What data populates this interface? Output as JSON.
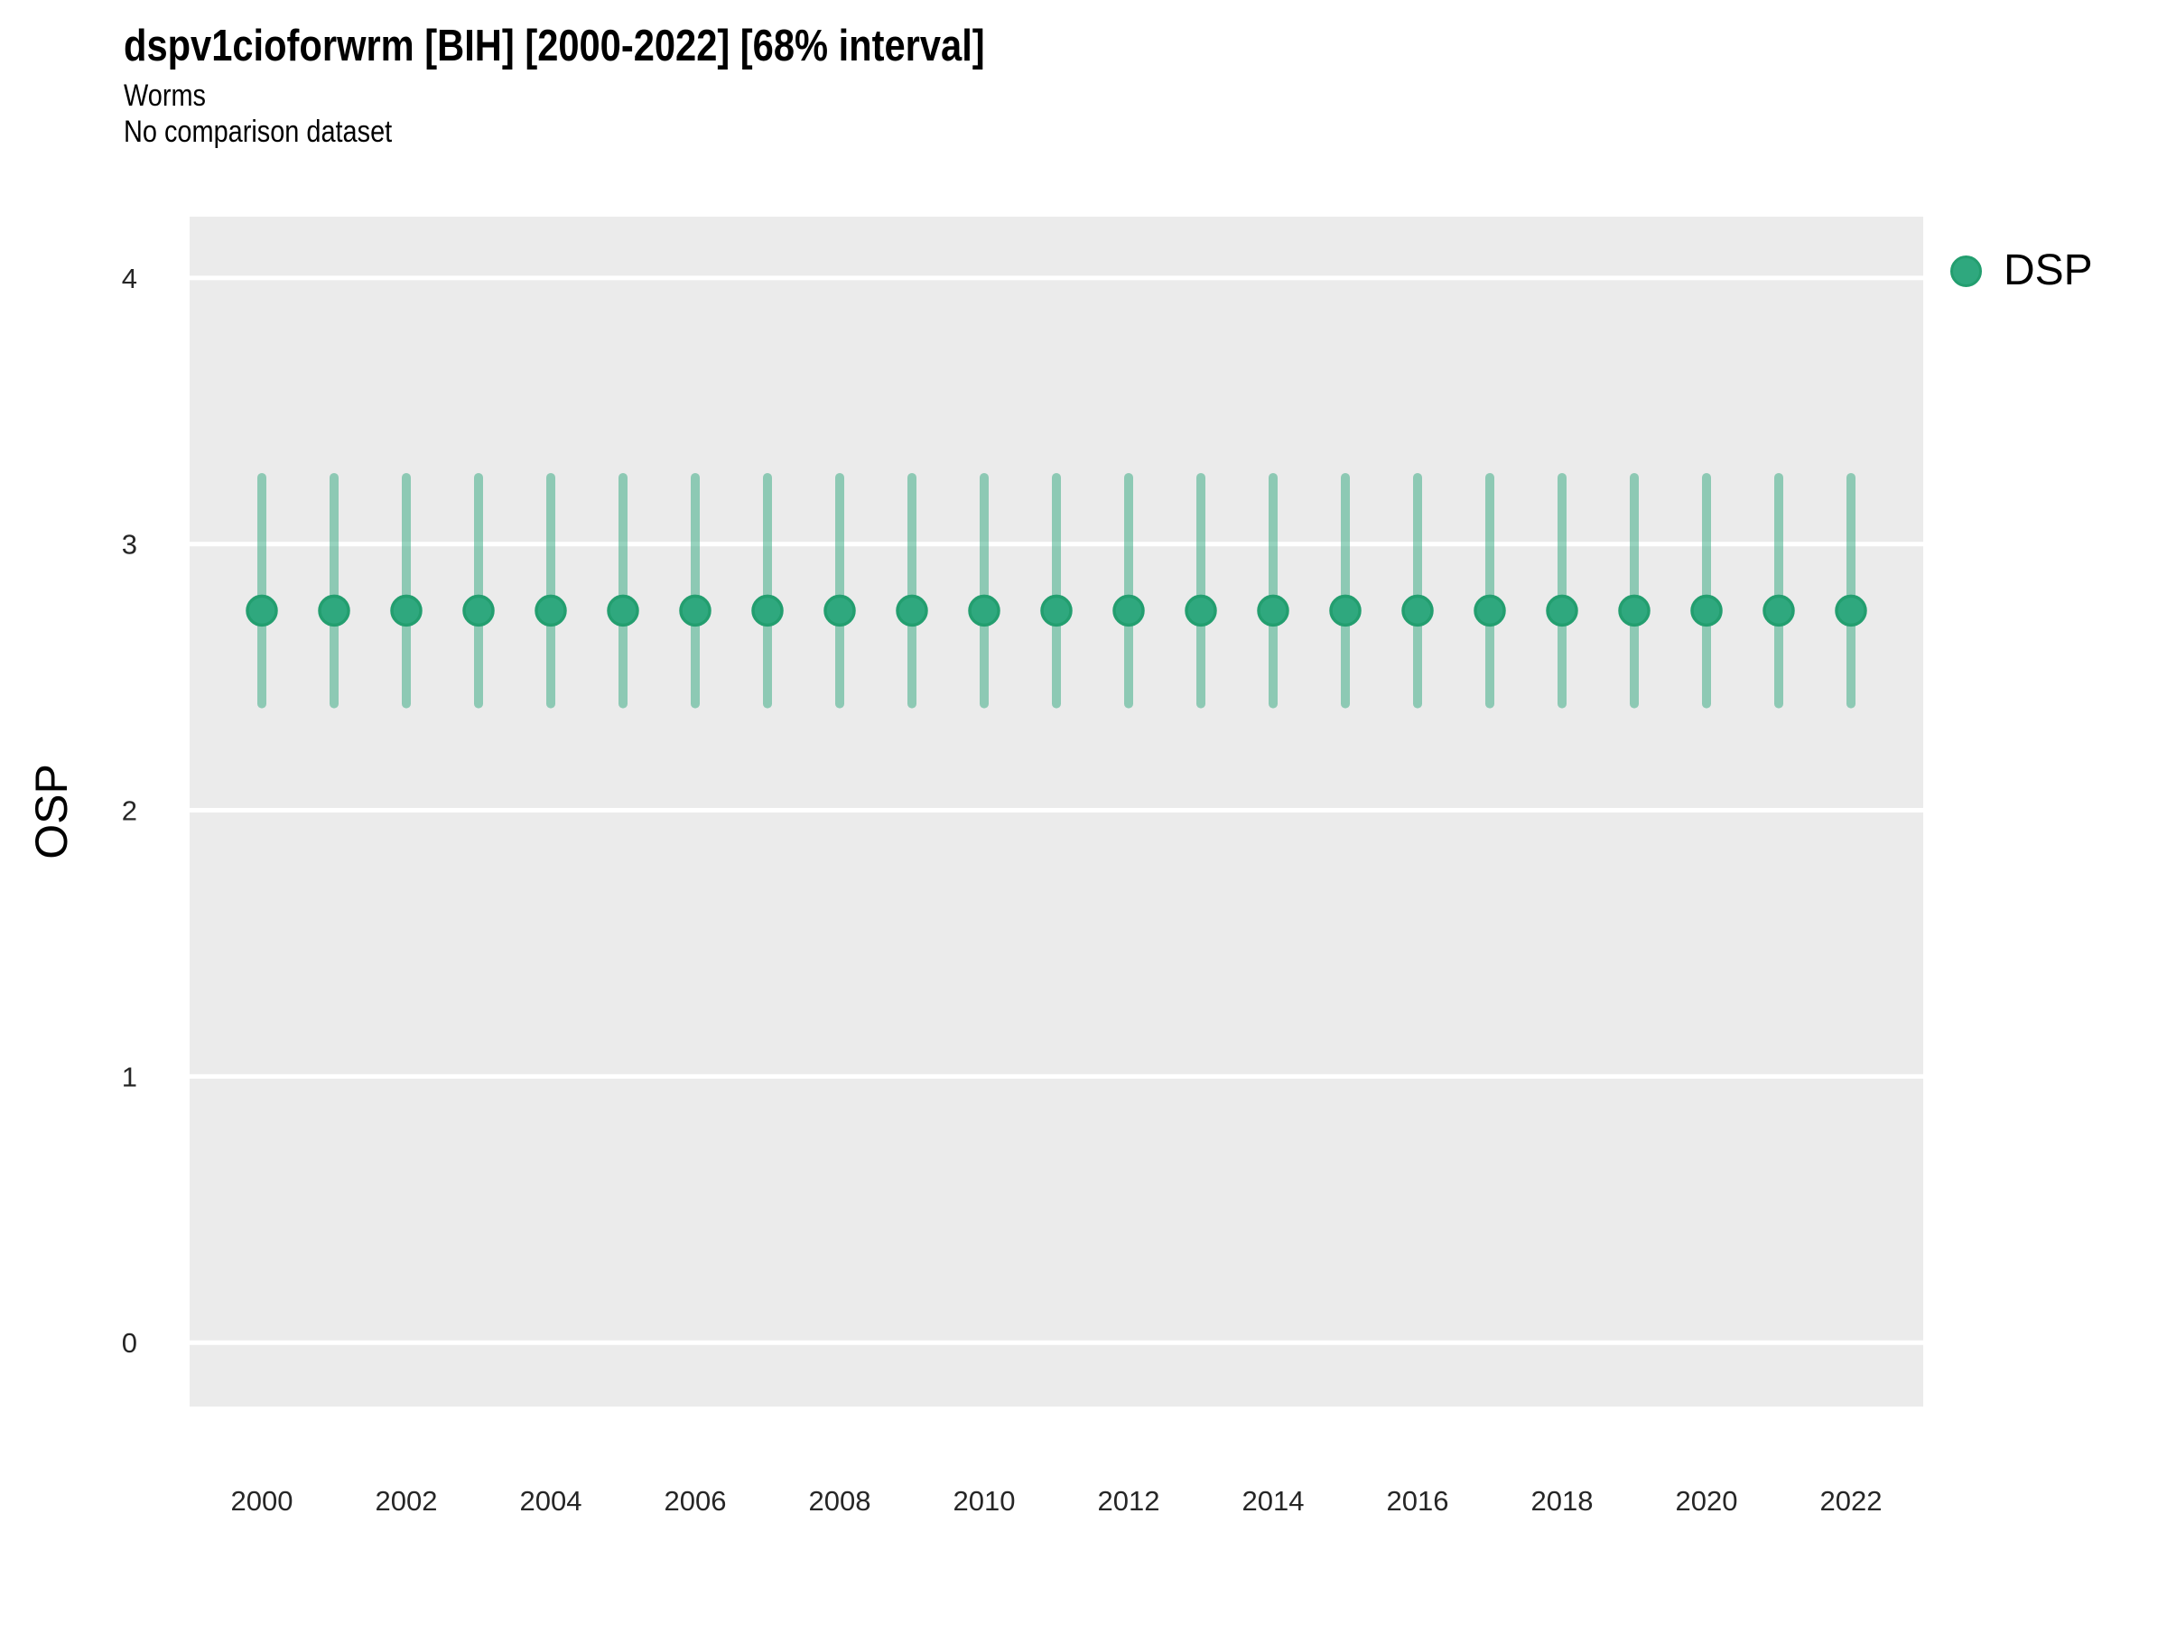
{
  "header": {
    "title": "dspv1cioforwrm [BIH] [2000-2022] [68% interval]",
    "subtitle": "Worms",
    "note": "No comparison dataset"
  },
  "y_axis": {
    "title": "OSP",
    "tick_labels": [
      "0",
      "1",
      "2",
      "3",
      "4"
    ]
  },
  "x_axis": {
    "tick_labels": [
      "2000",
      "2002",
      "2004",
      "2006",
      "2008",
      "2010",
      "2012",
      "2014",
      "2016",
      "2018",
      "2020",
      "2022"
    ]
  },
  "legend": {
    "position": "right",
    "items": [
      {
        "label": "DSP",
        "marker": "circle-icon",
        "color": "#2FA87E"
      }
    ]
  },
  "colors": {
    "point_fill": "#2FA87E",
    "point_stroke": "#239E6F",
    "error_bar": "rgba(47,168,126,0.5)",
    "panel_background": "#EBEBEB",
    "gridline": "#FFFFFF",
    "title_text": "#000000",
    "tick_text": "#262626"
  },
  "chart_data": {
    "type": "scatter",
    "title": "dspv1cioforwrm [BIH] [2000-2022] [68% interval]",
    "subtitle": "Worms",
    "note": "No comparison dataset",
    "xlabel": "",
    "ylabel": "OSP",
    "interval": "68%",
    "xlim": [
      1999,
      2023
    ],
    "ylim": [
      -0.24,
      4.23
    ],
    "x_ticks": [
      2000,
      2002,
      2004,
      2006,
      2008,
      2010,
      2012,
      2014,
      2016,
      2018,
      2020,
      2022
    ],
    "y_ticks": [
      0,
      1,
      2,
      3,
      4
    ],
    "grid": "major-horizontal-only",
    "legend_position": "right",
    "series": [
      {
        "name": "DSP",
        "x": [
          2000,
          2001,
          2002,
          2003,
          2004,
          2005,
          2006,
          2007,
          2008,
          2009,
          2010,
          2011,
          2012,
          2013,
          2014,
          2015,
          2016,
          2017,
          2018,
          2019,
          2020,
          2021,
          2022
        ],
        "y": [
          2.75,
          2.75,
          2.75,
          2.75,
          2.75,
          2.75,
          2.75,
          2.75,
          2.75,
          2.75,
          2.75,
          2.75,
          2.75,
          2.75,
          2.75,
          2.75,
          2.75,
          2.75,
          2.75,
          2.75,
          2.75,
          2.75,
          2.75
        ],
        "y_low": [
          2.4,
          2.4,
          2.4,
          2.4,
          2.4,
          2.4,
          2.4,
          2.4,
          2.4,
          2.4,
          2.4,
          2.4,
          2.4,
          2.4,
          2.4,
          2.4,
          2.4,
          2.4,
          2.4,
          2.4,
          2.4,
          2.4,
          2.4
        ],
        "y_high": [
          3.25,
          3.25,
          3.25,
          3.25,
          3.25,
          3.25,
          3.25,
          3.25,
          3.25,
          3.25,
          3.25,
          3.25,
          3.25,
          3.25,
          3.25,
          3.25,
          3.25,
          3.25,
          3.25,
          3.25,
          3.25,
          3.25,
          3.25
        ]
      }
    ]
  }
}
